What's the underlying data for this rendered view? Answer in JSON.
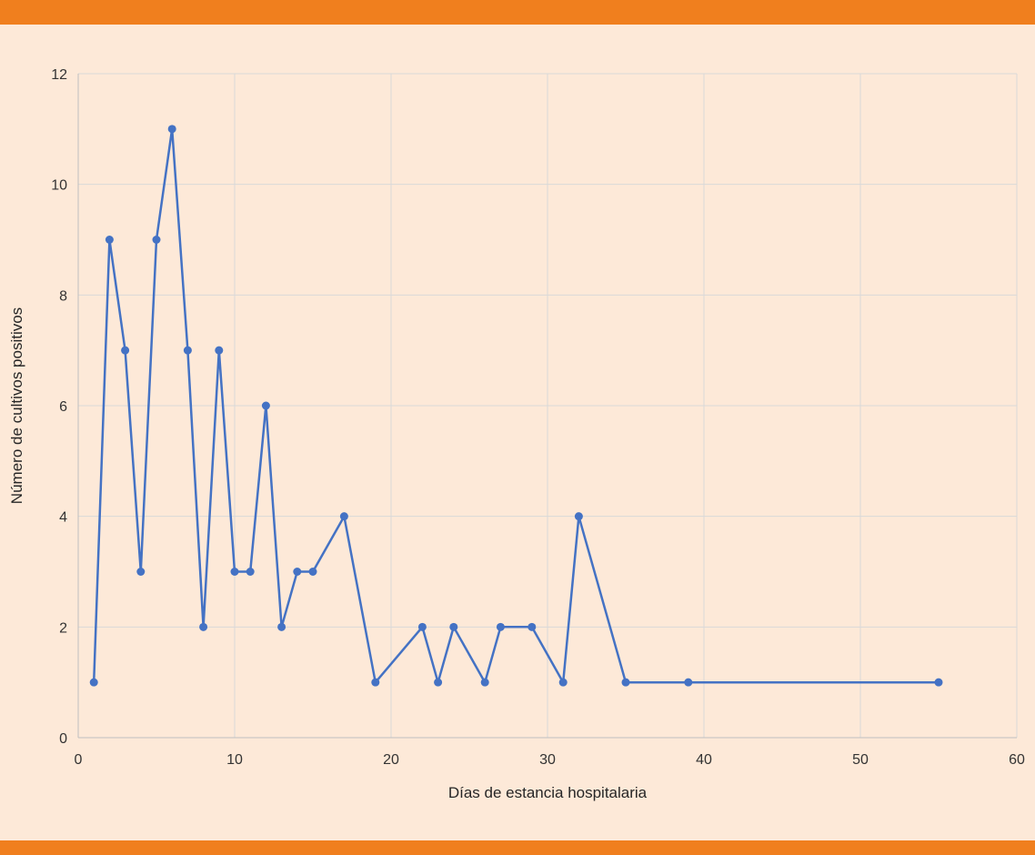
{
  "chart_data": {
    "type": "line",
    "title": "",
    "xlabel": "Días de estancia hospitalaria",
    "ylabel": "Número de cultivos positivos",
    "xlim": [
      0,
      60
    ],
    "ylim": [
      0,
      12
    ],
    "xticks": [
      0,
      10,
      20,
      30,
      40,
      50,
      60
    ],
    "yticks": [
      0,
      2,
      4,
      6,
      8,
      10,
      12
    ],
    "grid": true,
    "legend": "none",
    "series": [
      {
        "color": "#4472c4",
        "markers": true,
        "points": [
          [
            1,
            1
          ],
          [
            2,
            9
          ],
          [
            3,
            7
          ],
          [
            4,
            3
          ],
          [
            5,
            9
          ],
          [
            6,
            11
          ],
          [
            7,
            7
          ],
          [
            8,
            2
          ],
          [
            9,
            7
          ],
          [
            10,
            3
          ],
          [
            11,
            3
          ],
          [
            12,
            6
          ],
          [
            13,
            2
          ],
          [
            14,
            3
          ],
          [
            15,
            3
          ],
          [
            17,
            4
          ],
          [
            19,
            1
          ],
          [
            22,
            2
          ],
          [
            23,
            1
          ],
          [
            24,
            2
          ],
          [
            26,
            1
          ],
          [
            27,
            2
          ],
          [
            29,
            2
          ],
          [
            31,
            1
          ],
          [
            32,
            4
          ],
          [
            35,
            1
          ],
          [
            39,
            1
          ],
          [
            55,
            1
          ]
        ]
      }
    ]
  },
  "colors": {
    "band": "#f07f1e",
    "background": "#fde9d8",
    "grid": "#d9d9d9",
    "series": "#4472c4"
  }
}
